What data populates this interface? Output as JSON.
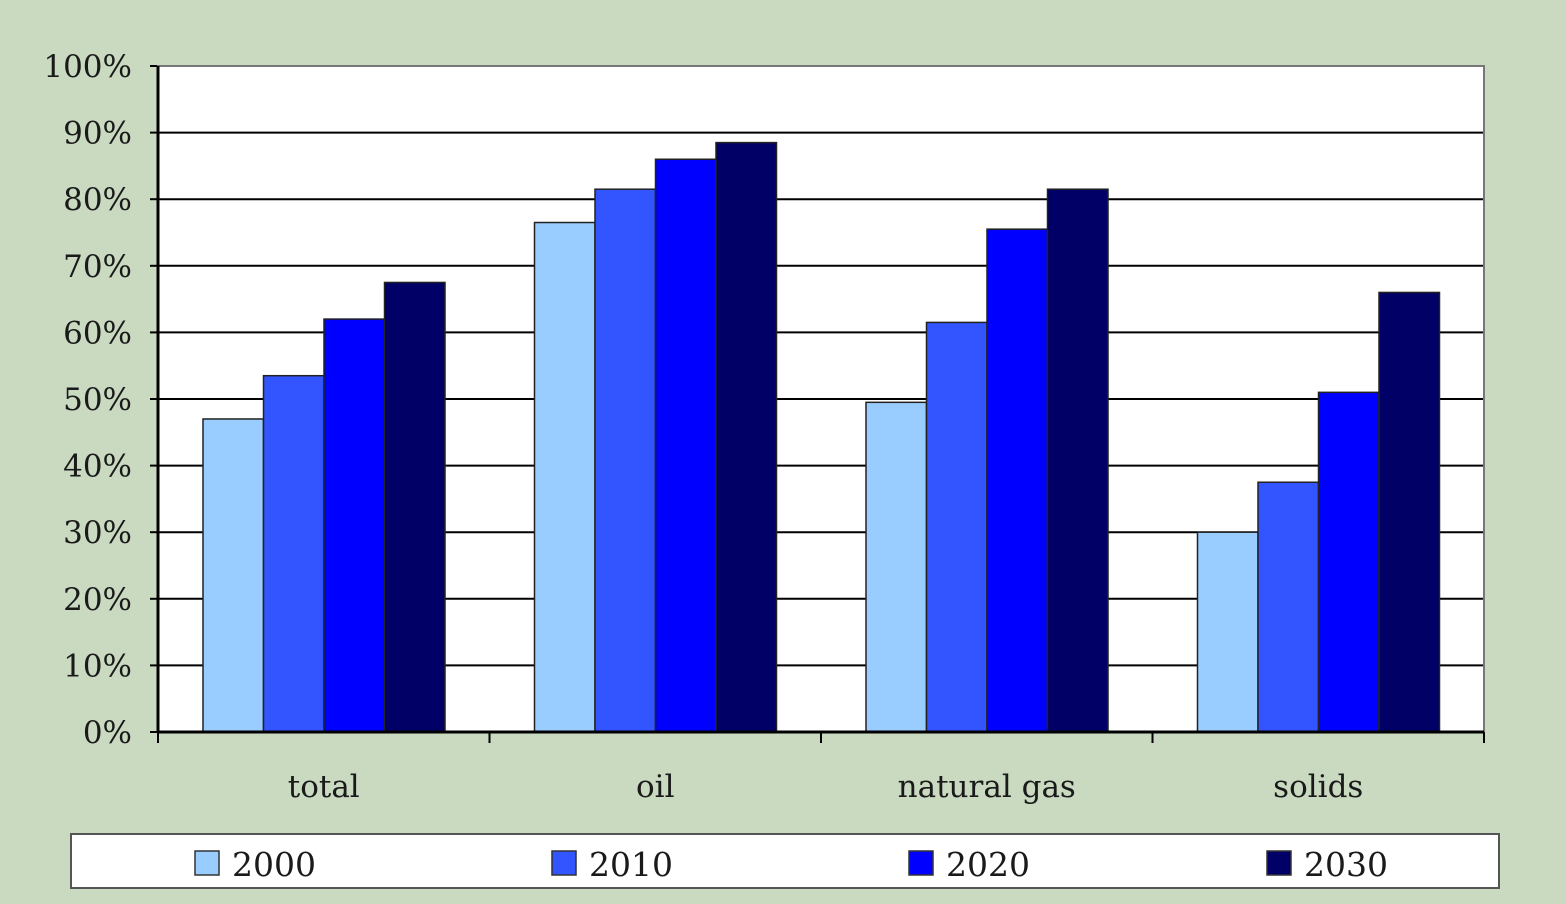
{
  "chart_data": {
    "type": "bar",
    "categories": [
      "total",
      "oil",
      "natural gas",
      "solids"
    ],
    "series": [
      {
        "name": "2000",
        "color": "#99ccff",
        "values": [
          47,
          76.5,
          49.5,
          30
        ]
      },
      {
        "name": "2010",
        "color": "#3355ff",
        "values": [
          53.5,
          81.5,
          61.5,
          37.5
        ]
      },
      {
        "name": "2020",
        "color": "#0000ff",
        "values": [
          62,
          86,
          75.5,
          51
        ]
      },
      {
        "name": "2030",
        "color": "#000066",
        "values": [
          67.5,
          88.5,
          81.5,
          66
        ]
      }
    ],
    "title": "",
    "xlabel": "",
    "ylabel": "",
    "ylim": [
      0,
      100
    ],
    "yticks": [
      "0%",
      "10%",
      "20%",
      "30%",
      "40%",
      "50%",
      "60%",
      "70%",
      "80%",
      "90%",
      "100%"
    ],
    "grid": true,
    "legend_position": "bottom"
  }
}
